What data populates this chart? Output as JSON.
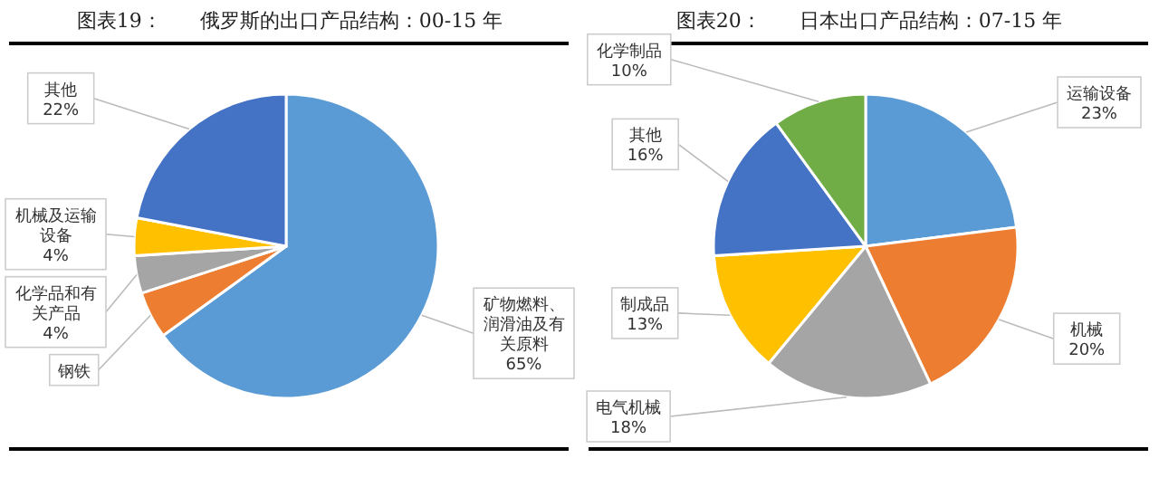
{
  "chart_data": [
    {
      "type": "pie",
      "title": "图表19：      俄罗斯的出口产品结构：00-15 年",
      "categories": [
        "矿物燃料、润滑油及有关原料",
        "钢铁",
        "化学品和有关产品",
        "机械及运输设备",
        "其他"
      ],
      "values": [
        65,
        5,
        4,
        4,
        22
      ],
      "colors": [
        "#5b9bd5",
        "#ed7d31",
        "#a5a5a5",
        "#ffc000",
        "#4472c4"
      ],
      "value_labels": [
        "65%",
        null,
        "4%",
        "4%",
        "22%"
      ],
      "legend": false
    },
    {
      "type": "pie",
      "title": "图表20：      日本出口产品结构：07-15 年",
      "categories": [
        "运输设备",
        "机械",
        "电气机械",
        "制成品",
        "其他",
        "化学制品"
      ],
      "values": [
        23,
        20,
        18,
        13,
        16,
        10
      ],
      "colors": [
        "#5b9bd5",
        "#ed7d31",
        "#a5a5a5",
        "#ffc000",
        "#4472c4",
        "#70ad47"
      ],
      "value_labels": [
        "23%",
        "20%",
        "18%",
        "13%",
        "16%",
        "10%"
      ],
      "legend": false
    }
  ]
}
